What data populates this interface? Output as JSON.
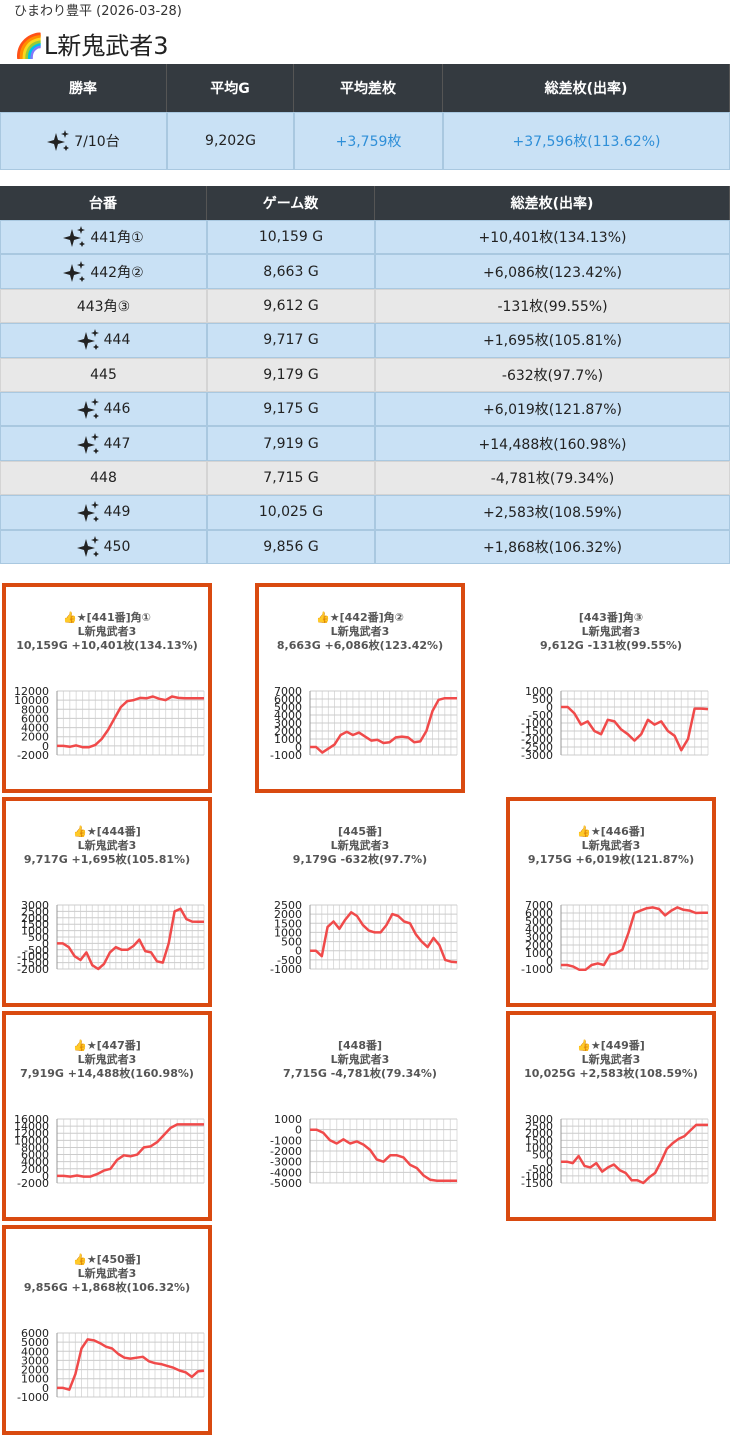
{
  "header": {
    "store": "ひまわり豊平 (2026-03-28)",
    "title": "L新鬼武者3"
  },
  "summary": {
    "columns": [
      "勝率",
      "平均G",
      "平均差枚",
      "総差枚(出率)"
    ],
    "values": [
      "7/10台",
      "9,202G",
      "+3,759枚",
      "+37,596枚(113.62%)"
    ]
  },
  "table": {
    "columns": [
      "台番",
      "ゲーム数",
      "総差枚(出率)"
    ],
    "rows": [
      [
        "441角①",
        "10,159 G",
        "+10,401枚(134.13%)"
      ],
      [
        "442角②",
        "8,663 G",
        "+6,086枚(123.42%)"
      ],
      [
        "443角③",
        "9,612 G",
        "-131枚(99.55%)"
      ],
      [
        "444",
        "9,717 G",
        "+1,695枚(105.81%)"
      ],
      [
        "445",
        "9,179 G",
        "-632枚(97.7%)"
      ],
      [
        "446",
        "9,175 G",
        "+6,019枚(121.87%)"
      ],
      [
        "447",
        "7,919 G",
        "+14,488枚(160.98%)"
      ],
      [
        "448",
        "7,715 G",
        "-4,781枚(79.34%)"
      ],
      [
        "449",
        "10,025 G",
        "+2,583枚(108.59%)"
      ],
      [
        "450",
        "9,856 G",
        "+1,868枚(106.32%)"
      ]
    ],
    "win": [
      true,
      true,
      false,
      true,
      false,
      true,
      true,
      false,
      true,
      true
    ]
  },
  "chart_data": [
    {
      "type": "line",
      "highlight": true,
      "title": [
        "👍★[441番]角①",
        "L新鬼武者3",
        "10,159G +10,401枚(134.13%)"
      ],
      "color": "#f04a4a",
      "grid": true,
      "ylim": [
        -2000,
        12000
      ],
      "yticks": [
        -2000,
        0,
        2000,
        4000,
        6000,
        8000,
        10000,
        12000
      ],
      "values": [
        0,
        0,
        -200,
        100,
        -300,
        -300,
        200,
        1500,
        3500,
        6000,
        8500,
        9800,
        10000,
        10500,
        10400,
        10800,
        10300,
        10000,
        10800,
        10500,
        10400,
        10400,
        10400,
        10401
      ]
    },
    {
      "type": "line",
      "highlight": true,
      "title": [
        "👍★[442番]角②",
        "L新鬼武者3",
        "8,663G +6,086枚(123.42%)"
      ],
      "color": "#f04a4a",
      "grid": true,
      "ylim": [
        -1000,
        7000
      ],
      "yticks": [
        -1000,
        0,
        1000,
        2000,
        3000,
        4000,
        5000,
        6000,
        7000
      ],
      "values": [
        0,
        0,
        -700,
        -200,
        300,
        1500,
        1900,
        1500,
        1800,
        1300,
        800,
        900,
        500,
        600,
        1200,
        1300,
        1200,
        600,
        700,
        2000,
        4500,
        5900,
        6100,
        6086,
        6086
      ]
    },
    {
      "type": "line",
      "highlight": false,
      "title": [
        "[443番]角③",
        "L新鬼武者3",
        "9,612G -131枚(99.55%)"
      ],
      "color": "#f04a4a",
      "grid": true,
      "ylim": [
        -3000,
        1000
      ],
      "yticks": [
        -3000,
        -2500,
        -2000,
        -1500,
        -1000,
        -500,
        0,
        500,
        1000
      ],
      "values": [
        0,
        0,
        -400,
        -1100,
        -900,
        -1500,
        -1700,
        -800,
        -900,
        -1400,
        -1700,
        -2100,
        -1700,
        -800,
        -1100,
        -900,
        -1500,
        -1800,
        -2700,
        -2000,
        -100,
        -100,
        -131
      ]
    },
    {
      "type": "line",
      "highlight": true,
      "title": [
        "👍★[444番]",
        "L新鬼武者3",
        "9,717G +1,695枚(105.81%)"
      ],
      "color": "#f04a4a",
      "grid": true,
      "ylim": [
        -2000,
        3000
      ],
      "yticks": [
        -2000,
        -1500,
        -1000,
        -500,
        0,
        500,
        1000,
        1500,
        2000,
        2500,
        3000
      ],
      "values": [
        0,
        0,
        -300,
        -1000,
        -1300,
        -700,
        -1700,
        -2000,
        -1600,
        -700,
        -300,
        -500,
        -500,
        -200,
        300,
        -600,
        -700,
        -1400,
        -1500,
        0,
        2500,
        2700,
        1900,
        1700,
        1695,
        1695
      ]
    },
    {
      "type": "line",
      "highlight": false,
      "title": [
        "[445番]",
        "L新鬼武者3",
        "9,179G -632枚(97.7%)"
      ],
      "color": "#f04a4a",
      "grid": true,
      "ylim": [
        -1000,
        2500
      ],
      "yticks": [
        -1000,
        -500,
        0,
        500,
        1000,
        1500,
        2000,
        2500
      ],
      "values": [
        0,
        0,
        -300,
        1300,
        1600,
        1200,
        1700,
        2100,
        1900,
        1400,
        1100,
        1000,
        1000,
        1400,
        2000,
        1900,
        1600,
        1500,
        900,
        500,
        200,
        700,
        300,
        -500,
        -600,
        -632
      ]
    },
    {
      "type": "line",
      "highlight": true,
      "title": [
        "👍★[446番]",
        "L新鬼武者3",
        "9,175G +6,019枚(121.87%)"
      ],
      "color": "#f04a4a",
      "grid": true,
      "ylim": [
        -1000,
        7000
      ],
      "yticks": [
        -1000,
        0,
        1000,
        2000,
        3000,
        4000,
        5000,
        6000,
        7000
      ],
      "values": [
        -500,
        -500,
        -700,
        -1100,
        -1100,
        -500,
        -300,
        -500,
        800,
        1000,
        1400,
        3500,
        6000,
        6300,
        6600,
        6700,
        6500,
        5700,
        6300,
        6700,
        6400,
        6300,
        6000,
        6019,
        6019
      ]
    },
    {
      "type": "line",
      "highlight": true,
      "title": [
        "👍★[447番]",
        "L新鬼武者3",
        "7,919G +14,488枚(160.98%)"
      ],
      "color": "#f04a4a",
      "grid": true,
      "ylim": [
        -2000,
        16000
      ],
      "yticks": [
        -2000,
        0,
        2000,
        4000,
        6000,
        8000,
        10000,
        12000,
        14000,
        16000
      ],
      "values": [
        0,
        0,
        -200,
        100,
        -200,
        -200,
        500,
        1500,
        2000,
        4500,
        5800,
        5500,
        6000,
        8000,
        8300,
        9500,
        11500,
        13500,
        14488,
        14488,
        14488,
        14488,
        14488
      ]
    },
    {
      "type": "line",
      "highlight": false,
      "title": [
        "[448番]",
        "L新鬼武者3",
        "7,715G -4,781枚(79.34%)"
      ],
      "color": "#f04a4a",
      "grid": true,
      "ylim": [
        -5000,
        1000
      ],
      "yticks": [
        -5000,
        -4000,
        -3000,
        -2000,
        -1000,
        0,
        1000
      ],
      "values": [
        0,
        0,
        -300,
        -1000,
        -1300,
        -900,
        -1300,
        -1100,
        -1400,
        -1900,
        -2800,
        -3000,
        -2400,
        -2400,
        -2600,
        -3300,
        -3600,
        -4300,
        -4700,
        -4781,
        -4781,
        -4781,
        -4781
      ]
    },
    {
      "type": "line",
      "highlight": true,
      "title": [
        "👍★[449番]",
        "L新鬼武者3",
        "10,025G +2,583枚(108.59%)"
      ],
      "color": "#f04a4a",
      "grid": true,
      "ylim": [
        -1500,
        3000
      ],
      "yticks": [
        -1500,
        -1000,
        -500,
        0,
        500,
        1000,
        1500,
        2000,
        2500,
        3000
      ],
      "values": [
        0,
        0,
        -100,
        400,
        -300,
        -400,
        -100,
        -700,
        -400,
        -200,
        -600,
        -800,
        -1300,
        -1300,
        -1500,
        -1100,
        -800,
        0,
        900,
        1300,
        1600,
        1800,
        2200,
        2583,
        2583,
        2583
      ]
    },
    {
      "type": "line",
      "highlight": true,
      "title": [
        "👍★[450番]",
        "L新鬼武者3",
        "9,856G +1,868枚(106.32%)"
      ],
      "color": "#f04a4a",
      "grid": true,
      "ylim": [
        -1000,
        6000
      ],
      "yticks": [
        -1000,
        0,
        1000,
        2000,
        3000,
        4000,
        5000,
        6000
      ],
      "values": [
        0,
        0,
        -200,
        1500,
        4300,
        5300,
        5200,
        4900,
        4500,
        4300,
        3700,
        3300,
        3200,
        3300,
        3400,
        2900,
        2700,
        2600,
        2400,
        2200,
        1900,
        1700,
        1200,
        1800,
        1868
      ]
    }
  ]
}
